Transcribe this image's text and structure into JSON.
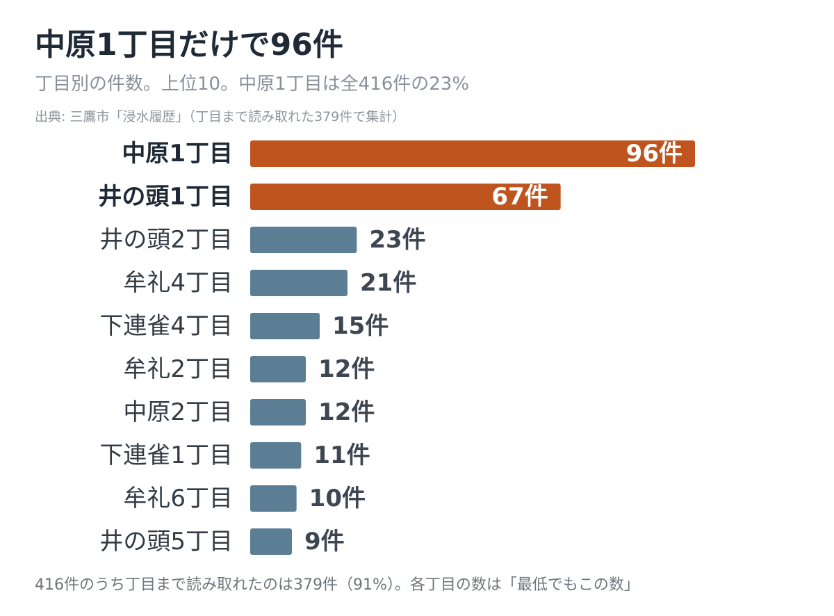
{
  "title": "中原1丁目だけで96件",
  "subtitle": "丁目別の件数。上位10。中原1丁目は全416件の23%",
  "source": "出典: 三鷹市「浸水履歴」（丁目まで読み取れた379件で集計）",
  "footnote": "416件のうち丁目まで読み取れたのは379件（91%）。各丁目の数は「最低でもこの数」",
  "colors": {
    "highlight": "#c0541f",
    "normal": "#5b7e95",
    "label": "#333b44",
    "value": "#3d4651",
    "value_inside": "#ffffff"
  },
  "chart_data": {
    "type": "bar",
    "orientation": "horizontal",
    "unit": "件",
    "categories": [
      "中原1丁目",
      "井の頭1丁目",
      "井の頭2丁目",
      "牟礼4丁目",
      "下連雀4丁目",
      "牟礼2丁目",
      "中原2丁目",
      "下連雀1丁目",
      "牟礼6丁目",
      "井の頭5丁目"
    ],
    "values": [
      96,
      67,
      23,
      21,
      15,
      12,
      12,
      11,
      10,
      9
    ],
    "highlighted": [
      "中原1丁目",
      "井の頭1丁目"
    ],
    "value_labels": [
      "96件",
      "67件",
      "23件",
      "21件",
      "15件",
      "12件",
      "12件",
      "11件",
      "10件",
      "9件"
    ],
    "xlim": [
      0,
      96
    ],
    "grid": false,
    "legend": "none"
  }
}
